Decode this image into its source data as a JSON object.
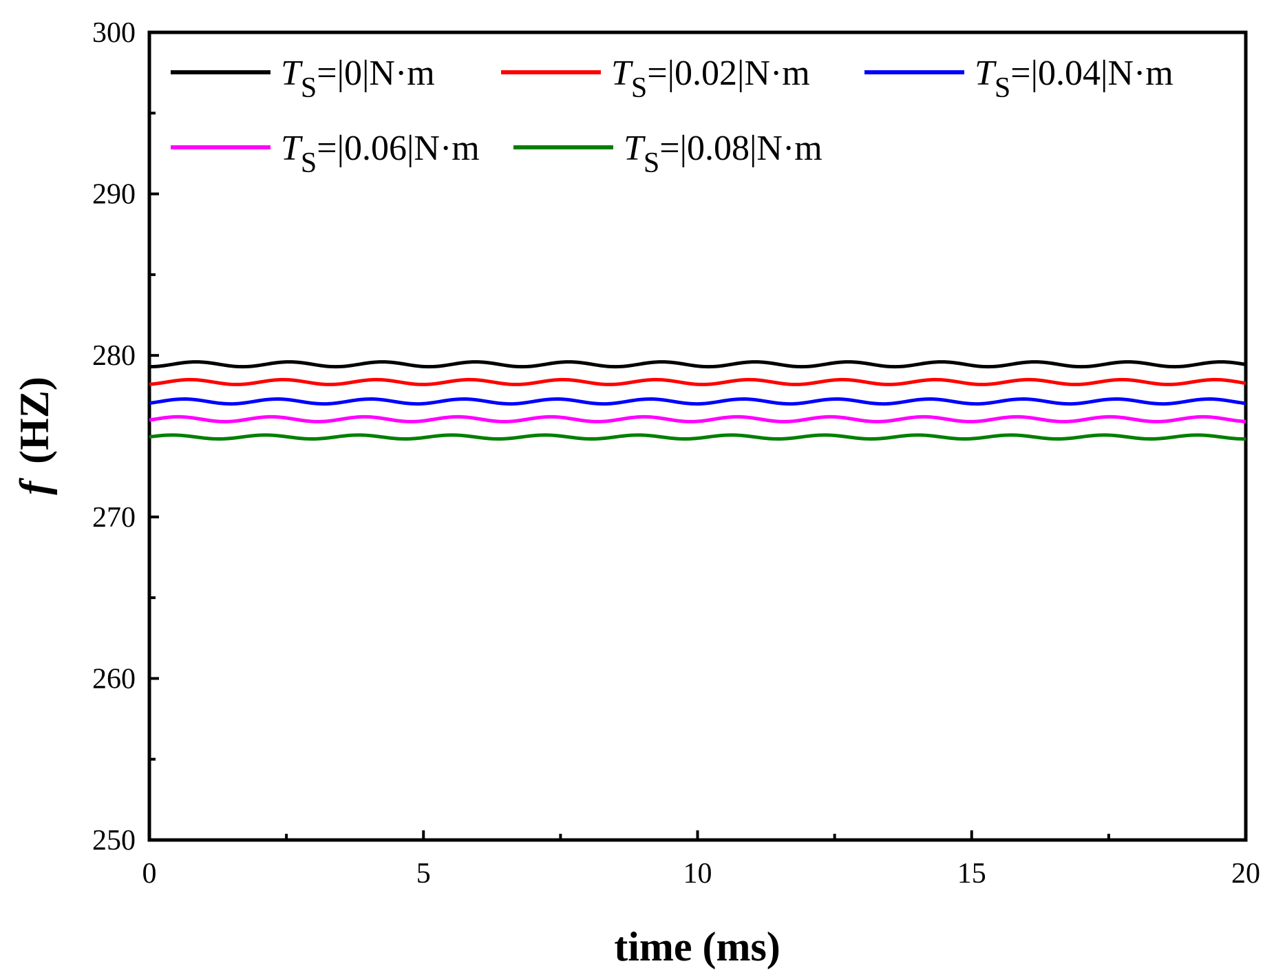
{
  "chart_data": {
    "type": "line",
    "title": "",
    "xlabel": "time (ms)",
    "ylabel_var": "f",
    "ylabel_unit": "(HZ)",
    "xlim": [
      0,
      20
    ],
    "ylim": [
      250,
      300
    ],
    "xticks": [
      0,
      5,
      10,
      15,
      20
    ],
    "yticks": [
      250,
      260,
      270,
      280,
      290,
      300
    ],
    "grid": false,
    "legend_position": "top",
    "oscillation_period_ms": 1.7,
    "series": [
      {
        "name": "T_S=|0|N·m",
        "torque_label": "=|0|N·m",
        "mean": 279.45,
        "amplitude": 0.15,
        "color": "#000000"
      },
      {
        "name": "T_S=|0.02|N·m",
        "torque_label": "=|0.02|N·m",
        "mean": 278.35,
        "amplitude": 0.15,
        "color": "#ff0000"
      },
      {
        "name": "T_S=|0.04|N·m",
        "torque_label": "=|0.04|N·m",
        "mean": 277.15,
        "amplitude": 0.15,
        "color": "#0000ff"
      },
      {
        "name": "T_S=|0.06|N·m",
        "torque_label": "=|0.06|N·m",
        "mean": 276.05,
        "amplitude": 0.15,
        "color": "#ff00ff"
      },
      {
        "name": "T_S=|0.08|N·m",
        "torque_label": "=|0.08|N·m",
        "mean": 274.95,
        "amplitude": 0.12,
        "color": "#008000"
      }
    ],
    "legend_symbol": "T",
    "legend_subscript": "S"
  }
}
